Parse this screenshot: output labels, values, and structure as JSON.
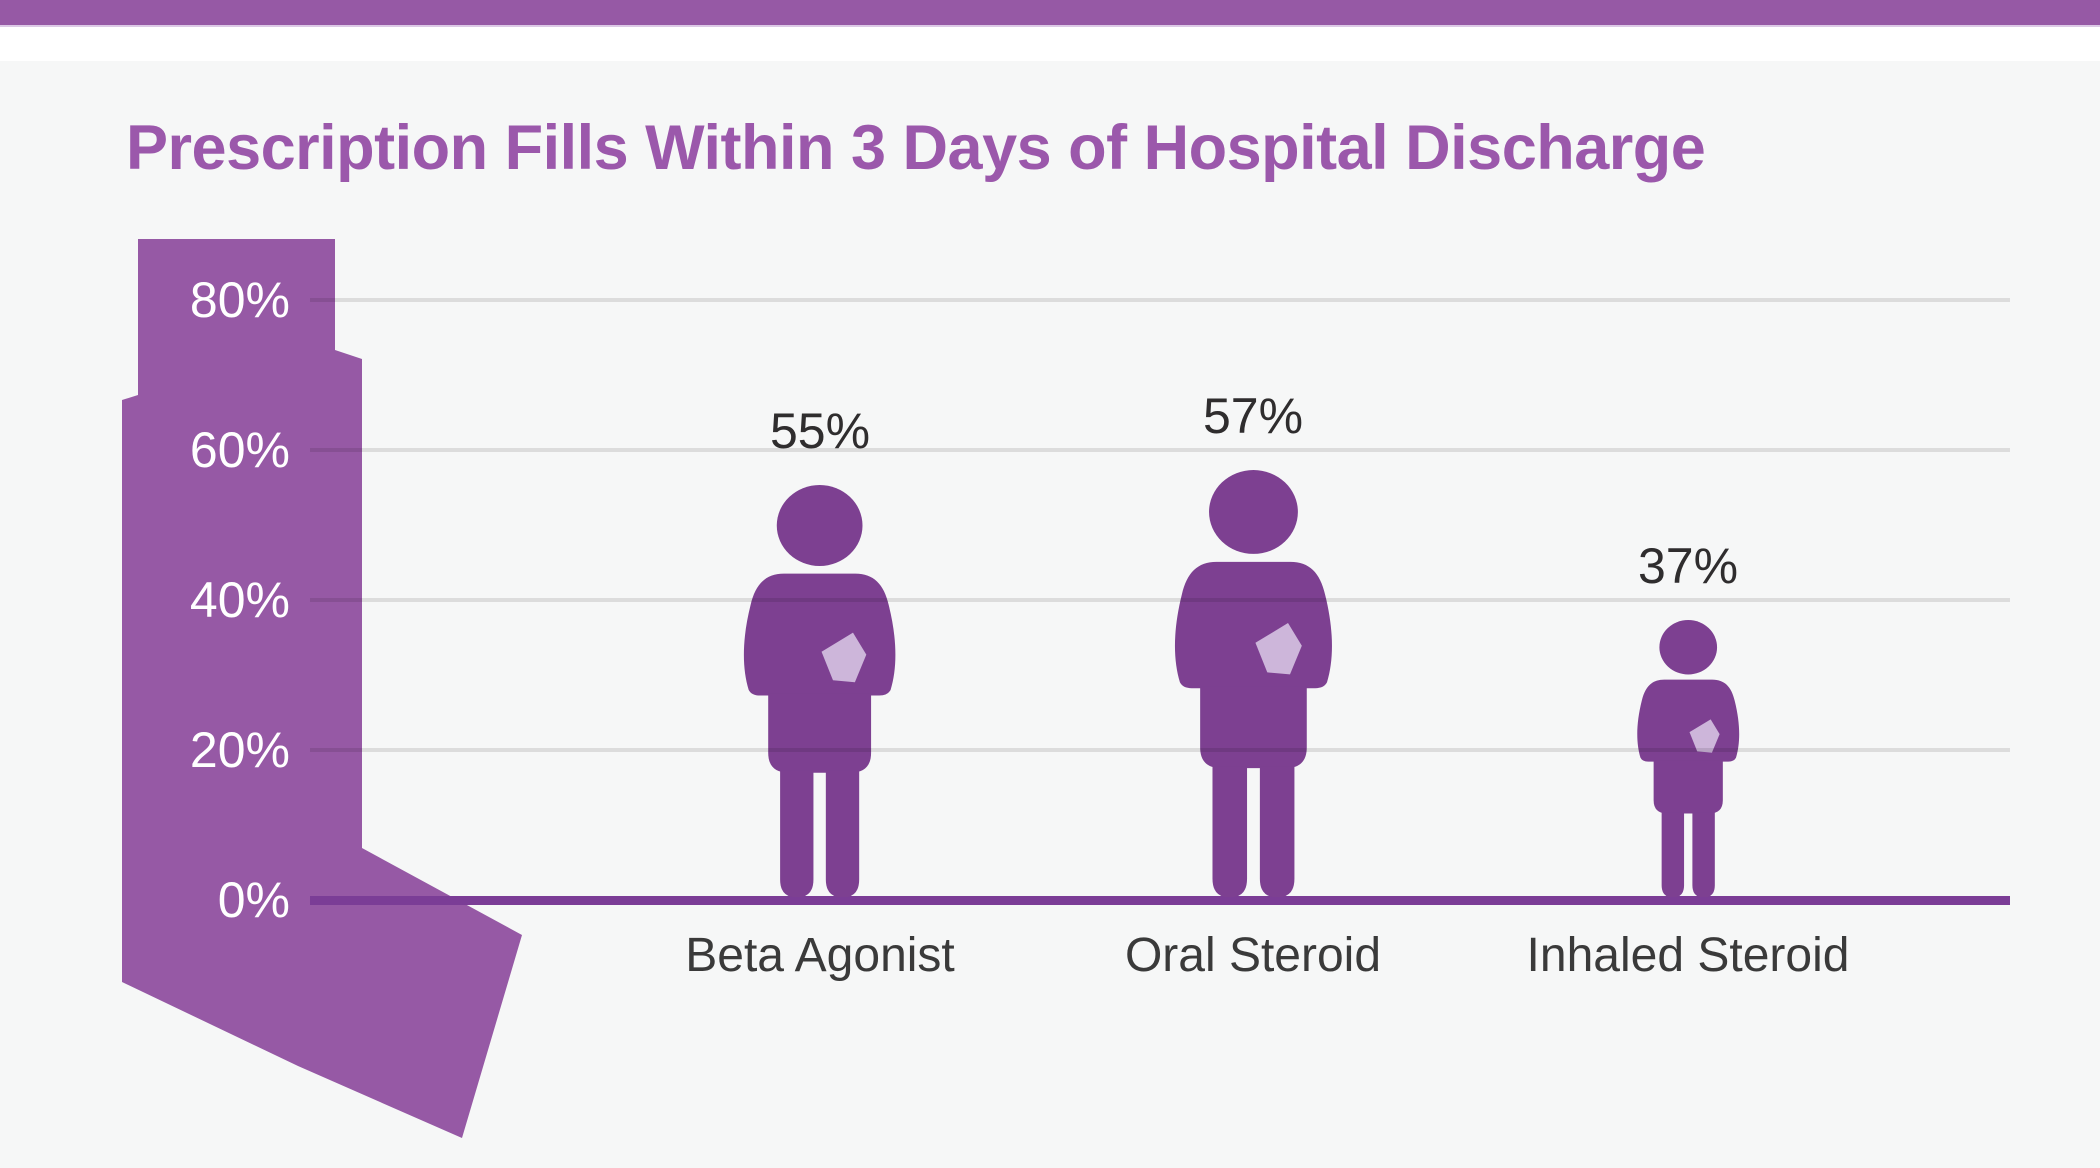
{
  "page": {
    "background_color": "#f6f7f7",
    "top_stripe_color": "#9659a5"
  },
  "header": {
    "title": "Prescription Fills Within 3 Days of Hospital Discharge",
    "title_color": "#9b58ab"
  },
  "chart_data": {
    "type": "bar",
    "variant": "pictogram (person-height encodes value, inhaler-shaped y-axis)",
    "title": "Prescription Fills Within 3 Days of Hospital Discharge",
    "categories": [
      "Beta Agonist",
      "Oral Steroid",
      "Inhaled Steroid"
    ],
    "values": [
      55,
      57,
      37
    ],
    "value_labels": [
      "55%",
      "57%",
      "37%"
    ],
    "xlabel": "",
    "ylabel": "",
    "y_axis": {
      "ticks": [
        "80%",
        "60%",
        "40%",
        "20%",
        "0%"
      ],
      "tick_values": [
        80,
        60,
        40,
        20,
        0
      ],
      "range": [
        0,
        80
      ],
      "grid": true,
      "tick_label_color": "#ffffff"
    },
    "legend": null,
    "colors": {
      "person_figure": "#7d4091",
      "chest_badge": "#cdb6da",
      "inhaler_silhouette": "#9659a5",
      "axis_baseline": "#7b3d96",
      "gridline": "rgba(0,0,0,0.105)",
      "value_label": "#2f2d2e",
      "category_label": "#3a3a3a"
    }
  },
  "icons": {
    "inhaler": "asthma-inhaler-silhouette",
    "person": "person-silhouette-with-chest-badge"
  }
}
